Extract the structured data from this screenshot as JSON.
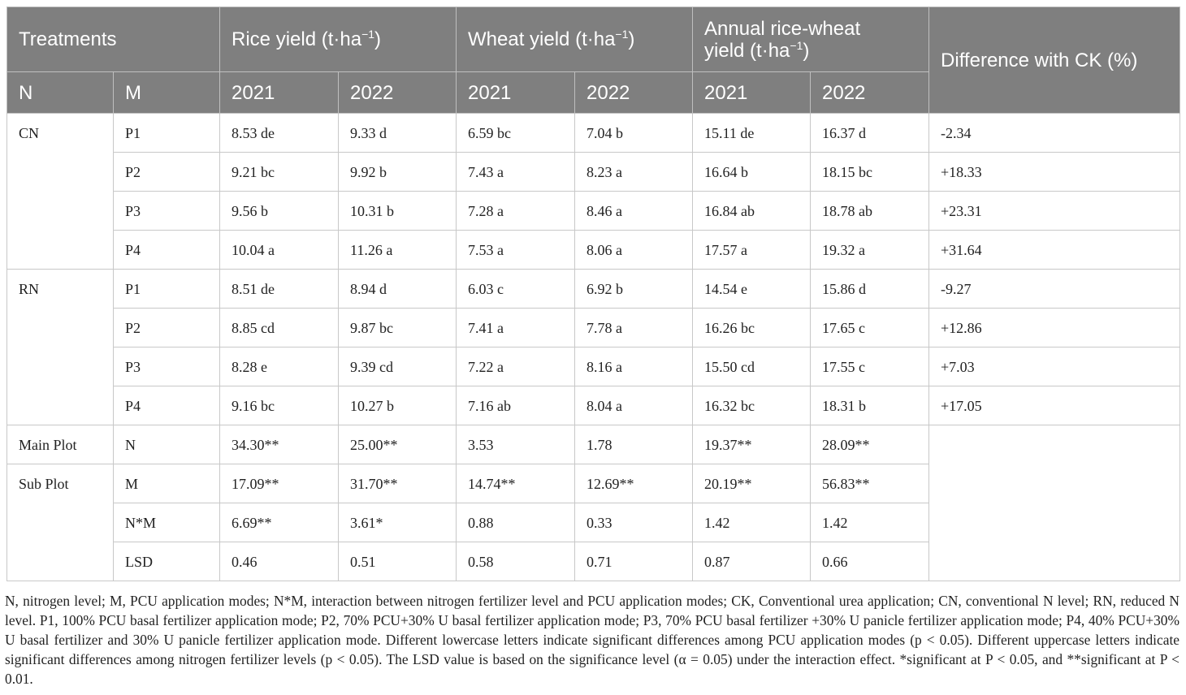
{
  "header": {
    "treatments": "Treatments",
    "rice_yield": "Rice yield (t·ha",
    "wheat_yield": "Wheat yield (t·ha",
    "annual_line1": "Annual rice-wheat",
    "annual_line2": "yield (t·ha",
    "unit_exp": "−1",
    "unit_close": ")",
    "difference": "Difference with CK (%)",
    "n": "N",
    "m": "M",
    "y2021": "2021",
    "y2022": "2022"
  },
  "rows": [
    {
      "group": "CN",
      "m": "P1",
      "c": [
        "8.53 de",
        "9.33 d",
        "6.59 bc",
        "7.04 b",
        "15.11 de",
        "16.37 d",
        "-2.34"
      ]
    },
    {
      "group": "",
      "m": "P2",
      "c": [
        "9.21 bc",
        "9.92 b",
        "7.43 a",
        "8.23 a",
        "16.64 b",
        "18.15 bc",
        "+18.33"
      ]
    },
    {
      "group": "",
      "m": "P3",
      "c": [
        "9.56 b",
        "10.31 b",
        "7.28 a",
        "8.46 a",
        "16.84 ab",
        "18.78 ab",
        "+23.31"
      ]
    },
    {
      "group": "",
      "m": "P4",
      "c": [
        "10.04 a",
        "11.26 a",
        "7.53 a",
        "8.06 a",
        "17.57 a",
        "19.32 a",
        "+31.64"
      ]
    },
    {
      "group": "RN",
      "m": "P1",
      "c": [
        "8.51 de",
        "8.94 d",
        "6.03 c",
        "6.92 b",
        "14.54 e",
        "15.86 d",
        "-9.27"
      ]
    },
    {
      "group": "",
      "m": "P2",
      "c": [
        "8.85 cd",
        "9.87 bc",
        "7.41 a",
        "7.78 a",
        "16.26 bc",
        "17.65 c",
        "+12.86"
      ]
    },
    {
      "group": "",
      "m": "P3",
      "c": [
        "8.28 e",
        "9.39 cd",
        "7.22 a",
        "8.16 a",
        "15.50 cd",
        "17.55 c",
        "+7.03"
      ]
    },
    {
      "group": "",
      "m": "P4",
      "c": [
        "9.16 bc",
        "10.27 b",
        "7.16 ab",
        "8.04 a",
        "16.32 bc",
        "18.31 b",
        "+17.05"
      ]
    },
    {
      "group": "Main Plot",
      "m": "N",
      "c": [
        "34.30**",
        "25.00**",
        "3.53",
        "1.78",
        "19.37**",
        "28.09**",
        ""
      ]
    },
    {
      "group": "Sub Plot",
      "m": "M",
      "c": [
        "17.09**",
        "31.70**",
        "14.74**",
        "12.69**",
        "20.19**",
        "56.83**",
        ""
      ]
    },
    {
      "group": "",
      "m": "N*M",
      "c": [
        "6.69**",
        "3.61*",
        "0.88",
        "0.33",
        "1.42",
        "1.42",
        ""
      ]
    },
    {
      "group": "",
      "m": "LSD",
      "c": [
        "0.46",
        "0.51",
        "0.58",
        "0.71",
        "0.87",
        "0.66",
        ""
      ]
    }
  ],
  "footnote": "N, nitrogen level; M, PCU application modes; N*M, interaction between nitrogen fertilizer level and PCU application modes; CK, Conventional urea application; CN, conventional N level; RN, reduced N level. P1, 100% PCU basal fertilizer application mode; P2, 70% PCU+30% U basal fertilizer application mode; P3, 70% PCU basal fertilizer +30% U panicle fertilizer application mode; P4, 40% PCU+30% U basal fertilizer and 30% U panicle fertilizer application mode. Different lowercase letters indicate significant differences among PCU application modes (p < 0.05). Different uppercase letters indicate significant differences among nitrogen fertilizer levels (p < 0.05). The LSD value is based on the significance level (α = 0.05) under the interaction effect. *significant at P < 0.05, and **significant at P < 0.01."
}
